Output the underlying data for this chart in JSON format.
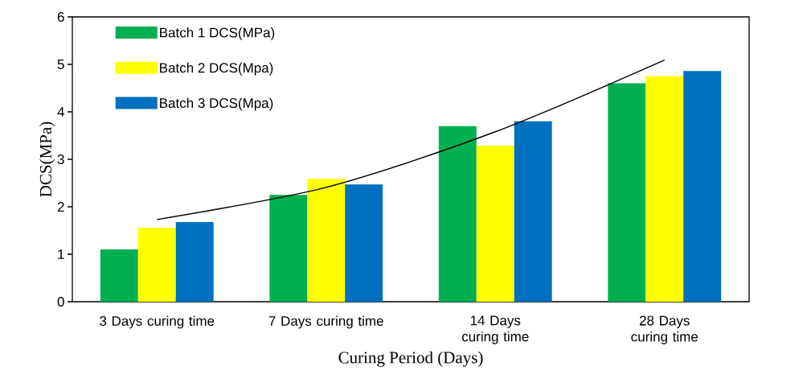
{
  "chart_data": {
    "type": "bar",
    "xlabel": "Curing Period (Days)",
    "ylabel": "DCS(MPa)",
    "categories": [
      "3 Days curing time",
      "7 Days curing time",
      "14 Days curing time",
      "28 Days curing time"
    ],
    "series": [
      {
        "name": "Batch 1 DCS(MPa)",
        "color": "#00b050",
        "values": [
          1.1,
          2.25,
          3.7,
          4.6
        ]
      },
      {
        "name": "Batch 2 DCS(Mpa)",
        "color": "#ffff00",
        "values": [
          1.56,
          2.59,
          3.29,
          4.75
        ]
      },
      {
        "name": "Batch 3 DCS(Mpa)",
        "color": "#0070c0",
        "values": [
          1.68,
          2.47,
          3.8,
          4.86
        ]
      },
      {
        "type": "line",
        "color": "#000000",
        "values": [
          1.73,
          2.41,
          3.58,
          5.09
        ]
      }
    ],
    "ylim": [
      0,
      6
    ],
    "yticks": [
      0,
      1,
      2,
      3,
      4,
      5,
      6
    ],
    "legend": "top left",
    "grid": false
  }
}
